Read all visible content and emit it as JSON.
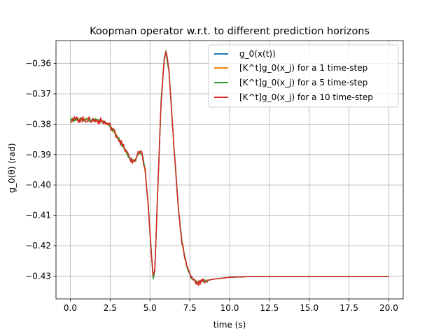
{
  "chart_data": {
    "type": "line",
    "title": "Koopman operator w.r.t. to different prediction horizons",
    "xlabel": "time (s)",
    "ylabel": "g_0(θ) (rad)",
    "xlim": [
      -0.9,
      20.9
    ],
    "ylim": [
      -0.4375,
      -0.3525
    ],
    "xticks": [
      0.0,
      2.5,
      5.0,
      7.5,
      10.0,
      12.5,
      15.0,
      17.5,
      20.0
    ],
    "xtick_labels": [
      "0.0",
      "2.5",
      "5.0",
      "7.5",
      "10.0",
      "12.5",
      "15.0",
      "17.5",
      "20.0"
    ],
    "yticks": [
      -0.36,
      -0.37,
      -0.38,
      -0.39,
      -0.4,
      -0.41,
      -0.42,
      -0.43
    ],
    "ytick_labels": [
      "−0.36",
      "−0.37",
      "−0.38",
      "−0.39",
      "−0.40",
      "−0.41",
      "−0.42",
      "−0.43"
    ],
    "grid": true,
    "legend_position": "top-right",
    "base_curve": {
      "x": [
        0.0,
        1.0,
        2.0,
        2.5,
        3.0,
        3.5,
        3.9,
        4.1,
        4.3,
        4.5,
        4.7,
        4.9,
        5.1,
        5.2,
        5.3,
        5.5,
        5.7,
        5.9,
        6.0,
        6.2,
        6.5,
        6.8,
        7.0,
        7.3,
        7.6,
        8.0,
        8.5,
        9.0,
        10.0,
        11.0,
        12.0,
        15.0,
        20.0
      ],
      "y": [
        -0.3785,
        -0.3785,
        -0.379,
        -0.3805,
        -0.3845,
        -0.389,
        -0.3925,
        -0.3915,
        -0.3895,
        -0.3898,
        -0.3955,
        -0.4075,
        -0.4235,
        -0.4305,
        -0.4285,
        -0.4005,
        -0.3725,
        -0.358,
        -0.3558,
        -0.363,
        -0.387,
        -0.4085,
        -0.4185,
        -0.4265,
        -0.4305,
        -0.4322,
        -0.4315,
        -0.431,
        -0.4304,
        -0.4302,
        -0.4301,
        -0.4301,
        -0.4301
      ]
    },
    "series": [
      {
        "name": "g_0(x(t))",
        "color": "#1f77b4"
      },
      {
        "name": "[K^t]g_0(x_j) for a 1 time-step",
        "color": "#ff7f0e"
      },
      {
        "name": "[K^t]g_0(x_j) for a 5 time-step",
        "color": "#2ca02c"
      },
      {
        "name": "[K^t]g_0(x_j) for a 10 time-step",
        "color": "#d62728"
      }
    ]
  }
}
